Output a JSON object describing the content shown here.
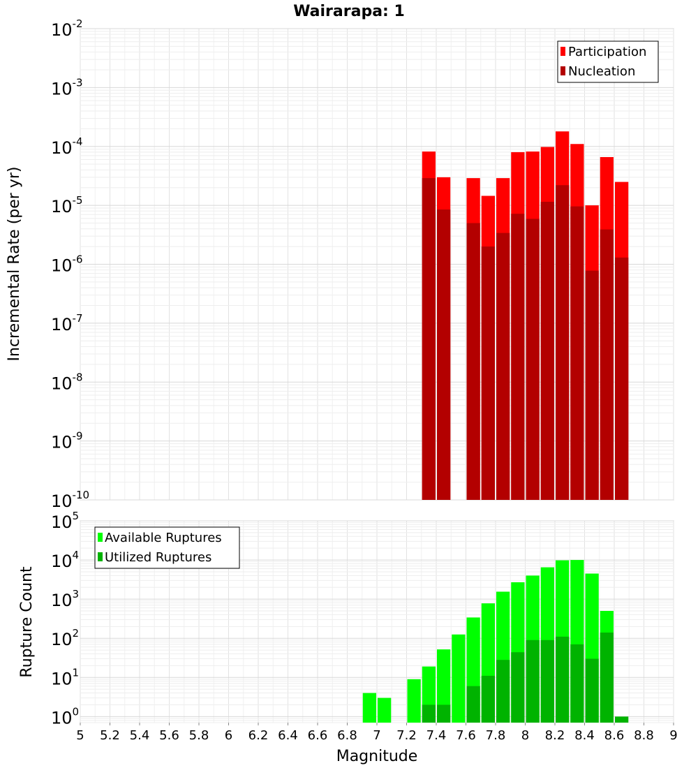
{
  "chart_data": [
    {
      "type": "bar",
      "title": "Wairarapa: 1",
      "xlabel": "",
      "ylabel": "Incremental Rate (per yr)",
      "xlim": [
        5,
        9
      ],
      "ylim": [
        1e-10,
        0.01
      ],
      "yscale": "log",
      "ytick_exponents": [
        "-10",
        "-9",
        "-8",
        "-7",
        "-6",
        "-5",
        "-4",
        "-3",
        "-2"
      ],
      "ytick_base": "10",
      "grid": true,
      "legend": {
        "placement": "top-right",
        "entries": [
          "Participation",
          "Nucleation"
        ]
      },
      "bin_width": 0.1,
      "series": [
        {
          "name": "Participation",
          "color": "#ff0000",
          "x": [
            7.35,
            7.45,
            7.65,
            7.75,
            7.85,
            7.95,
            8.05,
            8.15,
            8.25,
            8.35,
            8.45,
            8.55,
            8.65
          ],
          "values": [
            8.2e-05,
            3e-05,
            2.9e-05,
            1.45e-05,
            2.9e-05,
            8e-05,
            8.2e-05,
            9.8e-05,
            0.00018,
            0.00011,
            1e-05,
            6.6e-05,
            2.5e-05
          ]
        },
        {
          "name": "Nucleation",
          "color": "#b30000",
          "x": [
            7.35,
            7.45,
            7.65,
            7.75,
            7.85,
            7.95,
            8.05,
            8.15,
            8.25,
            8.35,
            8.45,
            8.55,
            8.65
          ],
          "values": [
            2.9e-05,
            8.5e-06,
            5e-06,
            2e-06,
            3.4e-06,
            7.2e-06,
            5.9e-06,
            1.15e-05,
            2.2e-05,
            9.6e-06,
            7.8e-07,
            3.9e-06,
            1.3e-06
          ]
        }
      ]
    },
    {
      "type": "bar",
      "title": "",
      "xlabel": "Magnitude",
      "ylabel": "Rupture Count",
      "xlim": [
        5,
        9
      ],
      "ylim": [
        0.7,
        100000.0
      ],
      "yscale": "log",
      "ytick_exponents": [
        "0",
        "1",
        "2",
        "3",
        "4",
        "5"
      ],
      "ytick_base": "10",
      "xticks": [
        "5",
        "5.2",
        "5.4",
        "5.6",
        "5.8",
        "6",
        "6.2",
        "6.4",
        "6.6",
        "6.8",
        "7",
        "7.2",
        "7.4",
        "7.6",
        "7.8",
        "8",
        "8.2",
        "8.4",
        "8.6",
        "8.8",
        "9"
      ],
      "grid": true,
      "legend": {
        "placement": "top-left",
        "entries": [
          "Available Ruptures",
          "Utilized Ruptures"
        ]
      },
      "bin_width": 0.1,
      "series": [
        {
          "name": "Available Ruptures",
          "color": "#00ff00",
          "x": [
            6.95,
            7.05,
            7.25,
            7.35,
            7.45,
            7.55,
            7.65,
            7.75,
            7.85,
            7.95,
            8.05,
            8.15,
            8.25,
            8.35,
            8.45,
            8.55
          ],
          "values": [
            4,
            3,
            9,
            19,
            52,
            125,
            340,
            780,
            1550,
            2700,
            4000,
            6500,
            9800,
            10000,
            4500,
            500
          ]
        },
        {
          "name": "Utilized Ruptures",
          "color": "#00b300",
          "x": [
            7.35,
            7.45,
            7.65,
            7.75,
            7.85,
            7.95,
            8.05,
            8.15,
            8.25,
            8.35,
            8.45,
            8.55,
            8.65
          ],
          "values": [
            2,
            2,
            6,
            11,
            28,
            44,
            90,
            90,
            110,
            70,
            30,
            140,
            1
          ]
        }
      ]
    }
  ]
}
